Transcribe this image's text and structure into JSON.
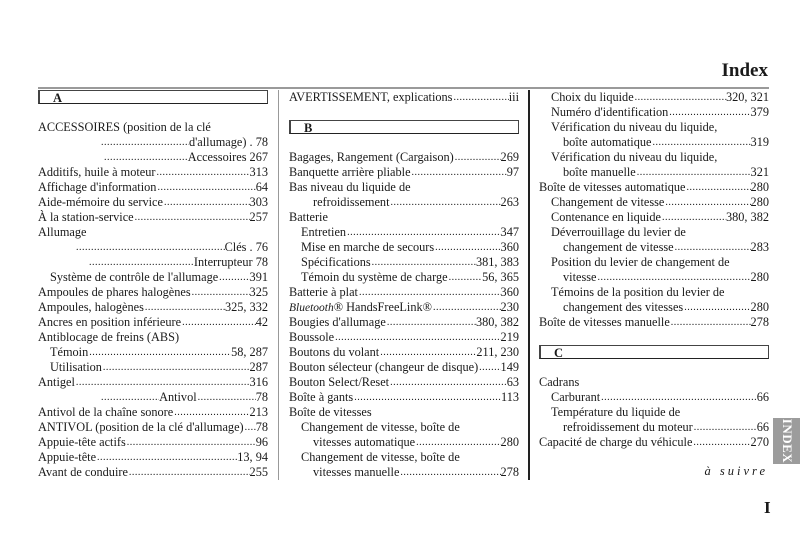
{
  "header": {
    "title": "Index"
  },
  "side_tab": {
    "label": "INDEX",
    "color": "#9c9c9c"
  },
  "footer": {
    "continued": "à suivre",
    "page_number": "I"
  },
  "columns": [
    {
      "sections": [
        {
          "letter": "A"
        }
      ],
      "entries": [
        {
          "text": "ACCESSOIRES (position de la clé",
          "page": "",
          "indent": 0
        },
        {
          "overflow": true,
          "text": "d'allumage) . 78"
        },
        {
          "overflow": true,
          "text": "Accessoires 267"
        },
        {
          "text": "Additifs, huile à moteur",
          "page": "313",
          "indent": 0
        },
        {
          "text": "Affichage d'information",
          "page": "64",
          "indent": 0
        },
        {
          "text": "Aide-mémoire du service",
          "page": "303",
          "indent": 0
        },
        {
          "text": "À la station-service",
          "page": "257",
          "indent": 0
        },
        {
          "text": "Allumage",
          "page": "",
          "indent": 0
        },
        {
          "overflow": true,
          "text": "Clés . 76"
        },
        {
          "overflow": true,
          "text": "Interrupteur 78"
        },
        {
          "text": "Système de contrôle de l'allumage",
          "page": "391",
          "indent": 1
        },
        {
          "text": "Ampoules de phares halogènes",
          "page": "325",
          "indent": 0
        },
        {
          "text": "Ampoules, halogènes",
          "page": "325, 332",
          "indent": 0
        },
        {
          "text": "Ancres en position inférieure",
          "page": "42",
          "indent": 0
        },
        {
          "text": "Antiblocage de freins (ABS)",
          "page": "",
          "indent": 0
        },
        {
          "text": "Témoin",
          "page": "58, 287",
          "indent": 1
        },
        {
          "text": "Utilisation",
          "page": "287",
          "indent": 1
        },
        {
          "text": "Antigel",
          "page": "316",
          "indent": 0
        },
        {
          "overflow": true,
          "text": "Antivol",
          "page": "78"
        },
        {
          "text": "Antivol de la chaîne sonore",
          "page": "213",
          "indent": 0
        },
        {
          "text": "ANTIVOL (position de la clé d'allumage)",
          "page": "78",
          "indent": 0
        },
        {
          "text": "Appuie-tête actifs",
          "page": "96",
          "indent": 0
        },
        {
          "text": "Appuie-tête",
          "page": "13, 94",
          "indent": 0
        },
        {
          "text": "Avant de conduire",
          "page": "255",
          "indent": 0
        }
      ]
    },
    {
      "sections": [
        {
          "letter": "B"
        }
      ],
      "entries": [
        {
          "text": "AVERTISSEMENT, explications",
          "page": "iii",
          "indent": 0
        },
        {
          "text": "Bagages, Rangement (Cargaison)",
          "page": "269",
          "indent": 0
        },
        {
          "text": "Banquette arrière pliable",
          "page": "97",
          "indent": 0
        },
        {
          "text": "Bas niveau du liquide de",
          "page": "",
          "indent": 0
        },
        {
          "text": "refroidissement",
          "page": "263",
          "indent": 2
        },
        {
          "text": "Batterie",
          "page": "",
          "indent": 0
        },
        {
          "text": "Entretien",
          "page": "347",
          "indent": 1
        },
        {
          "text": "Mise en marche de secours",
          "page": "360",
          "indent": 1
        },
        {
          "text": "Spécifications",
          "page": "381, 383",
          "indent": 1
        },
        {
          "text": "Témoin du système de charge",
          "page": "56, 365",
          "indent": 1
        },
        {
          "text": "Batterie à plat",
          "page": "360",
          "indent": 0
        },
        {
          "text": "Bluetooth® HandsFreeLink®",
          "page": "230",
          "indent": 0
        },
        {
          "text": "Bougies d'allumage",
          "page": "380, 382",
          "indent": 0
        },
        {
          "text": "Boussole",
          "page": "219",
          "indent": 0
        },
        {
          "text": "Boutons du volant",
          "page": "211, 230",
          "indent": 0
        },
        {
          "text": "Bouton sélecteur (changeur de disque)",
          "page": "149",
          "indent": 0
        },
        {
          "text": "Bouton Select/Reset",
          "page": "63",
          "indent": 0
        },
        {
          "text": "Boîte à gants",
          "page": "113",
          "indent": 0
        },
        {
          "text": "Boîte de vitesses",
          "page": "",
          "indent": 0
        },
        {
          "text": "Changement de vitesse, boîte de",
          "page": "",
          "indent": 1
        },
        {
          "text": "vitesses automatique",
          "page": "280",
          "indent": 2
        },
        {
          "text": "Changement de vitesse, boîte de",
          "page": "",
          "indent": 1
        },
        {
          "text": "vitesses manuelle",
          "page": "278",
          "indent": 2
        }
      ]
    },
    {
      "sections": [
        {
          "letter": "C"
        }
      ],
      "entries": [
        {
          "text": "Choix du liquide",
          "page": "320, 321",
          "indent": 1
        },
        {
          "text": "Numéro d'identification",
          "page": "379",
          "indent": 1
        },
        {
          "text": "Vérification du niveau du liquide,",
          "page": "",
          "indent": 1
        },
        {
          "text": "boîte automatique",
          "page": "319",
          "indent": 2
        },
        {
          "text": "Vérification du niveau du liquide,",
          "page": "",
          "indent": 1
        },
        {
          "text": "boîte manuelle",
          "page": "321",
          "indent": 2
        },
        {
          "text": "Boîte de vitesses automatique",
          "page": "280",
          "indent": 0
        },
        {
          "text": "Changement de vitesse",
          "page": "280",
          "indent": 1
        },
        {
          "text": "Contenance en liquide",
          "page": "380, 382",
          "indent": 1
        },
        {
          "text": "Déverrouillage du levier de",
          "page": "",
          "indent": 1
        },
        {
          "text": "changement de vitesse",
          "page": "283",
          "indent": 2
        },
        {
          "text": "Position du levier de changement de",
          "page": "",
          "indent": 1
        },
        {
          "text": "vitesse",
          "page": "280",
          "indent": 2
        },
        {
          "text": "Témoins de la position du levier de",
          "page": "",
          "indent": 1
        },
        {
          "text": "changement des vitesses",
          "page": "280",
          "indent": 2
        },
        {
          "text": "Boîte de vitesses manuelle",
          "page": "278",
          "indent": 0
        },
        {
          "text": "Cadrans",
          "page": "",
          "indent": 0
        },
        {
          "text": "Carburant",
          "page": "66",
          "indent": 1
        },
        {
          "text": "Température du liquide de",
          "page": "",
          "indent": 1
        },
        {
          "text": "refroidissement du moteur",
          "page": "66",
          "indent": 2
        },
        {
          "text": "Capacité de charge du véhicule",
          "page": "270",
          "indent": 0
        }
      ]
    }
  ]
}
